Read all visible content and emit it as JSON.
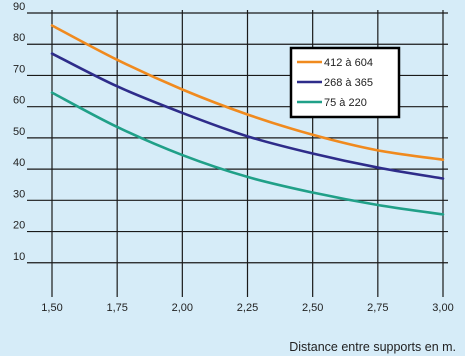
{
  "chart_data": {
    "type": "line",
    "title": "",
    "xlabel": "Distance entre supports en m.",
    "ylabel": "",
    "xlim": [
      1.5,
      3.0
    ],
    "ylim": [
      0,
      90
    ],
    "x_ticks": [
      1.5,
      1.75,
      2.0,
      2.25,
      2.5,
      2.75,
      3.0
    ],
    "x_tick_labels": [
      "1,50",
      "1,75",
      "2,00",
      "2,25",
      "2,50",
      "2,75",
      "3,00"
    ],
    "y_ticks": [
      10,
      20,
      30,
      40,
      50,
      60,
      70,
      80,
      90
    ],
    "y_tick_labels": [
      "10",
      "20",
      "30",
      "40",
      "50",
      "60",
      "70",
      "80",
      "90"
    ],
    "grid": true,
    "legend_position": "top-right",
    "series": [
      {
        "name": "412 à 604",
        "color": "#f08a1e",
        "x": [
          1.5,
          1.75,
          2.0,
          2.25,
          2.5,
          2.75,
          3.0
        ],
        "y": [
          86,
          75,
          65.5,
          57.5,
          51,
          46,
          43
        ]
      },
      {
        "name": "268 à 365",
        "color": "#2e2c8a",
        "x": [
          1.5,
          1.75,
          2.0,
          2.25,
          2.5,
          2.75,
          3.0
        ],
        "y": [
          77,
          66.5,
          58,
          50.5,
          45,
          40.5,
          37
        ]
      },
      {
        "name": "75 à 220",
        "color": "#20a088",
        "x": [
          1.5,
          1.75,
          2.0,
          2.25,
          2.5,
          2.75,
          3.0
        ],
        "y": [
          64.5,
          53.5,
          44.5,
          37.5,
          32.5,
          28.5,
          25.5
        ]
      }
    ]
  }
}
